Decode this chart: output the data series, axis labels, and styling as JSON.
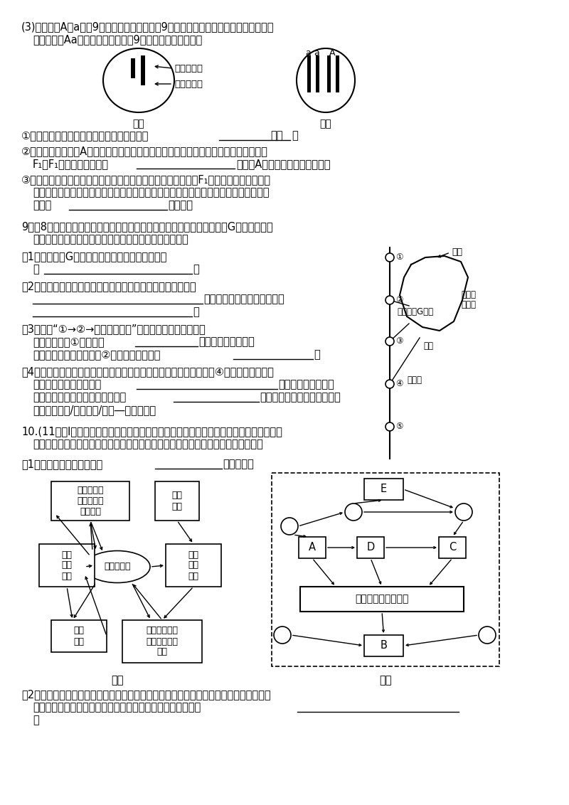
{
  "bg_color": "#ffffff",
  "circle_nums": [
    "①",
    "②",
    "③",
    "④",
    "⑤"
  ],
  "circle4": "④"
}
